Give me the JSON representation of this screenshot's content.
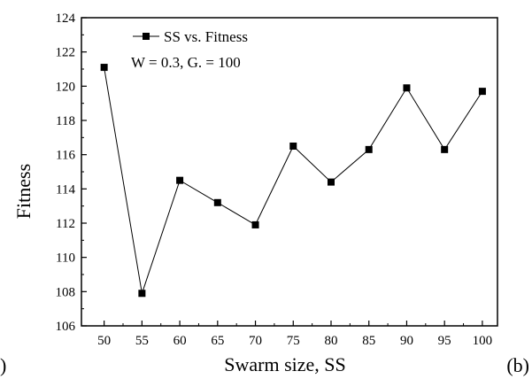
{
  "chart_data": {
    "type": "line",
    "xlabel": "Swarm size, SS",
    "ylabel": "Fitness",
    "xlim": [
      47,
      102
    ],
    "ylim": [
      106,
      124
    ],
    "x_ticks": [
      50,
      55,
      60,
      65,
      70,
      75,
      80,
      85,
      90,
      95,
      100
    ],
    "y_ticks": [
      106,
      108,
      110,
      112,
      114,
      116,
      118,
      120,
      122,
      124
    ],
    "series": [
      {
        "name": "SS vs. Fitness",
        "marker": "square",
        "color": "#000000",
        "x": [
          50,
          55,
          60,
          65,
          70,
          75,
          80,
          85,
          90,
          95,
          100
        ],
        "y": [
          121.1,
          107.9,
          114.5,
          113.2,
          111.9,
          116.5,
          114.4,
          116.3,
          119.9,
          116.3,
          119.7
        ]
      }
    ],
    "annotation": "W = 0.3, G. = 100",
    "legend_position": "top-left",
    "grid": false
  },
  "panel_label_left": ")",
  "panel_label_right": "(b)"
}
